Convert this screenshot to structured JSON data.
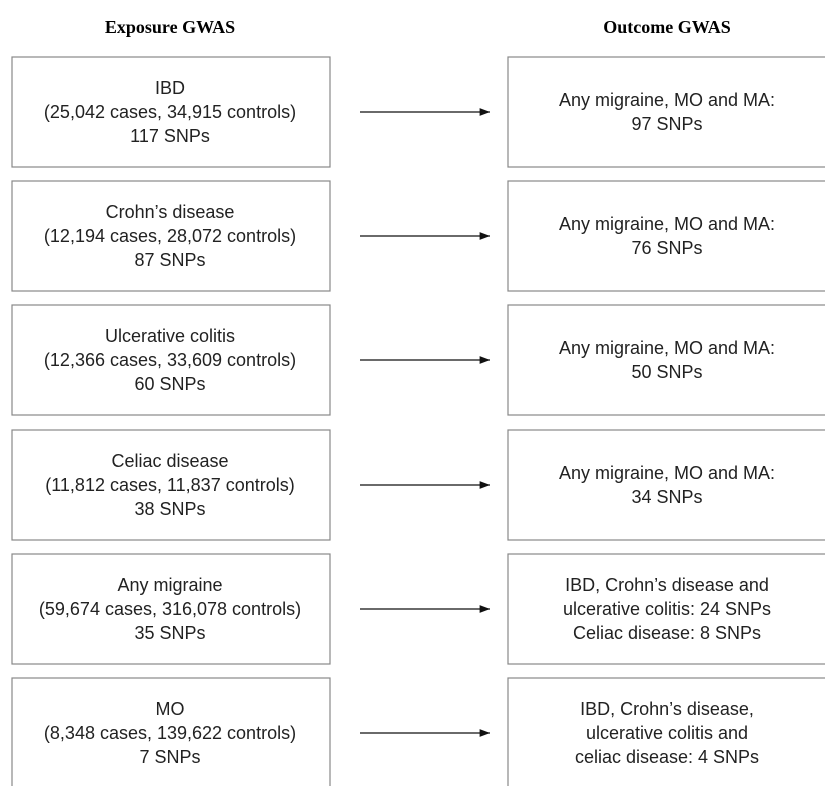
{
  "header": {
    "exposure": "Exposure GWAS",
    "outcome": "Outcome GWAS"
  },
  "rows": [
    {
      "exposure": [
        "IBD",
        "(25,042 cases, 34,915 controls)",
        "117 SNPs"
      ],
      "outcome": [
        "Any migraine, MO and MA:",
        "97 SNPs"
      ]
    },
    {
      "exposure": [
        "Crohn’s disease",
        "(12,194 cases, 28,072 controls)",
        "87 SNPs"
      ],
      "outcome": [
        "Any migraine, MO and MA:",
        "76 SNPs"
      ]
    },
    {
      "exposure": [
        "Ulcerative colitis",
        "(12,366 cases, 33,609 controls)",
        "60 SNPs"
      ],
      "outcome": [
        "Any migraine, MO and MA:",
        "50 SNPs"
      ]
    },
    {
      "exposure": [
        "Celiac disease",
        "(11,812 cases, 11,837 controls)",
        "38 SNPs"
      ],
      "outcome": [
        "Any migraine, MO and MA:",
        "34 SNPs"
      ]
    },
    {
      "exposure": [
        "Any migraine",
        "(59,674 cases, 316,078 controls)",
        "35 SNPs"
      ],
      "outcome": [
        "IBD, Crohn’s disease and",
        "ulcerative colitis: 24 SNPs",
        "Celiac disease: 8 SNPs"
      ]
    },
    {
      "exposure": [
        "MO",
        "(8,348 cases, 139,622 controls)",
        "7 SNPs"
      ],
      "outcome": [
        "IBD, Crohn’s disease,",
        "ulcerative colitis and",
        "celiac disease: 4 SNPs"
      ]
    }
  ]
}
